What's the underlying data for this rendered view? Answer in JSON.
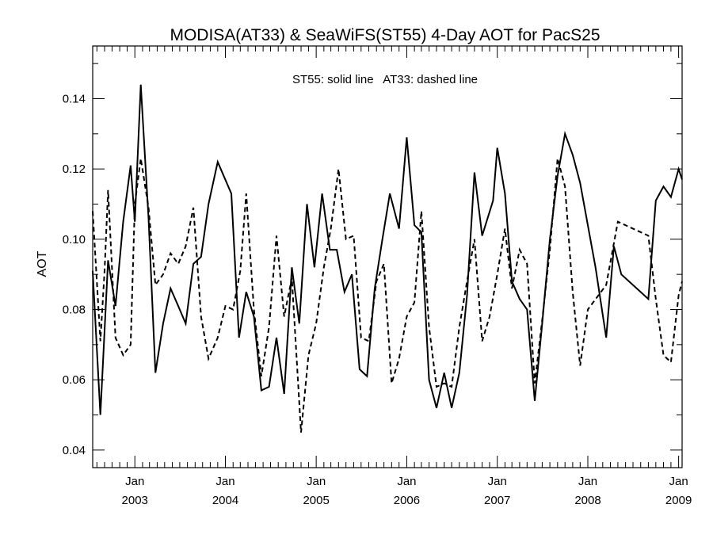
{
  "chart_data": {
    "type": "line",
    "title": "MODISA(AT33) & SeaWiFS(ST55) 4-Day AOT for PacS25",
    "annotation": "ST55: solid line   AT33: dashed line",
    "xlabel": "",
    "ylabel": "AOT",
    "xlim": [
      "2002-07-15",
      "2009-01-15"
    ],
    "ylim": [
      0.035,
      0.155
    ],
    "y_ticks": [
      "0.04",
      "0.06",
      "0.08",
      "0.10",
      "0.12",
      "0.14"
    ],
    "x_ticks": [
      {
        "date": "2003-01-01",
        "month": "Jan",
        "year": "2003"
      },
      {
        "date": "2004-01-01",
        "month": "Jan",
        "year": "2004"
      },
      {
        "date": "2005-01-01",
        "month": "Jan",
        "year": "2005"
      },
      {
        "date": "2006-01-01",
        "month": "Jan",
        "year": "2006"
      },
      {
        "date": "2007-01-01",
        "month": "Jan",
        "year": "2007"
      },
      {
        "date": "2008-01-01",
        "month": "Jan",
        "year": "2008"
      },
      {
        "date": "2009-01-01",
        "month": "Jan",
        "year": "2009"
      }
    ],
    "grid": false,
    "series": [
      {
        "name": "ST55",
        "style": "solid",
        "color": "#000000",
        "points": [
          [
            "2002-07-15",
            0.091
          ],
          [
            "2002-08-15",
            0.05
          ],
          [
            "2002-09-15",
            0.094
          ],
          [
            "2002-10-15",
            0.081
          ],
          [
            "2002-11-15",
            0.105
          ],
          [
            "2002-12-15",
            0.121
          ],
          [
            "2003-01-01",
            0.105
          ],
          [
            "2003-01-25",
            0.144
          ],
          [
            "2003-02-25",
            0.106
          ],
          [
            "2003-03-25",
            0.062
          ],
          [
            "2003-04-25",
            0.076
          ],
          [
            "2003-05-25",
            0.086
          ],
          [
            "2003-06-25",
            0.081
          ],
          [
            "2003-07-25",
            0.076
          ],
          [
            "2003-08-25",
            0.093
          ],
          [
            "2003-09-25",
            0.095
          ],
          [
            "2003-10-25",
            0.11
          ],
          [
            "2003-12-01",
            0.122
          ],
          [
            "2004-01-25",
            0.113
          ],
          [
            "2004-02-25",
            0.072
          ],
          [
            "2004-03-25",
            0.085
          ],
          [
            "2004-04-25",
            0.078
          ],
          [
            "2004-05-25",
            0.057
          ],
          [
            "2004-06-25",
            0.058
          ],
          [
            "2004-07-25",
            0.072
          ],
          [
            "2004-08-25",
            0.056
          ],
          [
            "2004-09-25",
            0.092
          ],
          [
            "2004-10-25",
            0.076
          ],
          [
            "2004-11-25",
            0.11
          ],
          [
            "2004-12-25",
            0.092
          ],
          [
            "2005-01-25",
            0.113
          ],
          [
            "2005-02-25",
            0.097
          ],
          [
            "2005-03-25",
            0.097
          ],
          [
            "2005-04-25",
            0.085
          ],
          [
            "2005-05-25",
            0.09
          ],
          [
            "2005-06-25",
            0.063
          ],
          [
            "2005-07-25",
            0.061
          ],
          [
            "2005-08-25",
            0.086
          ],
          [
            "2005-09-25",
            0.1
          ],
          [
            "2005-10-25",
            0.113
          ],
          [
            "2005-12-01",
            0.103
          ],
          [
            "2006-01-01",
            0.129
          ],
          [
            "2006-02-01",
            0.104
          ],
          [
            "2006-03-01",
            0.102
          ],
          [
            "2006-04-01",
            0.06
          ],
          [
            "2006-05-01",
            0.052
          ],
          [
            "2006-06-01",
            0.062
          ],
          [
            "2006-07-01",
            0.052
          ],
          [
            "2006-08-01",
            0.062
          ],
          [
            "2006-09-01",
            0.084
          ],
          [
            "2006-10-01",
            0.119
          ],
          [
            "2006-11-01",
            0.101
          ],
          [
            "2006-12-15",
            0.111
          ],
          [
            "2007-01-01",
            0.126
          ],
          [
            "2007-02-01",
            0.113
          ],
          [
            "2007-03-01",
            0.088
          ],
          [
            "2007-04-01",
            0.083
          ],
          [
            "2007-05-01",
            0.08
          ],
          [
            "2007-06-01",
            0.054
          ],
          [
            "2007-07-01",
            0.076
          ],
          [
            "2007-08-01",
            0.1
          ],
          [
            "2007-09-01",
            0.118
          ],
          [
            "2007-10-01",
            0.13
          ],
          [
            "2007-11-01",
            0.124
          ],
          [
            "2007-12-01",
            0.116
          ],
          [
            "2008-02-01",
            0.092
          ],
          [
            "2008-03-15",
            0.072
          ],
          [
            "2008-04-15",
            0.098
          ],
          [
            "2008-05-15",
            0.09
          ],
          [
            "2008-09-01",
            0.083
          ],
          [
            "2008-10-01",
            0.111
          ],
          [
            "2008-11-01",
            0.115
          ],
          [
            "2008-12-01",
            0.112
          ],
          [
            "2009-01-01",
            0.12
          ],
          [
            "2009-01-15",
            0.117
          ]
        ]
      },
      {
        "name": "AT33",
        "style": "dashed",
        "color": "#000000",
        "points": [
          [
            "2002-07-15",
            0.108
          ],
          [
            "2002-08-15",
            0.071
          ],
          [
            "2002-09-01",
            0.091
          ],
          [
            "2002-09-15",
            0.114
          ],
          [
            "2002-10-15",
            0.072
          ],
          [
            "2002-11-15",
            0.067
          ],
          [
            "2002-12-15",
            0.07
          ],
          [
            "2003-01-01",
            0.11
          ],
          [
            "2003-01-25",
            0.123
          ],
          [
            "2003-02-25",
            0.109
          ],
          [
            "2003-03-25",
            0.087
          ],
          [
            "2003-04-25",
            0.09
          ],
          [
            "2003-05-25",
            0.096
          ],
          [
            "2003-06-25",
            0.093
          ],
          [
            "2003-07-25",
            0.098
          ],
          [
            "2003-08-25",
            0.109
          ],
          [
            "2003-09-25",
            0.078
          ],
          [
            "2003-10-25",
            0.066
          ],
          [
            "2003-12-01",
            0.072
          ],
          [
            "2004-01-01",
            0.081
          ],
          [
            "2004-02-01",
            0.08
          ],
          [
            "2004-03-01",
            0.091
          ],
          [
            "2004-03-25",
            0.113
          ],
          [
            "2004-04-25",
            0.08
          ],
          [
            "2004-05-25",
            0.061
          ],
          [
            "2004-06-25",
            0.075
          ],
          [
            "2004-07-25",
            0.101
          ],
          [
            "2004-08-25",
            0.078
          ],
          [
            "2004-09-25",
            0.089
          ],
          [
            "2004-11-01",
            0.045
          ],
          [
            "2004-12-01",
            0.067
          ],
          [
            "2005-01-01",
            0.076
          ],
          [
            "2005-02-01",
            0.092
          ],
          [
            "2005-03-01",
            0.103
          ],
          [
            "2005-04-01",
            0.12
          ],
          [
            "2005-05-01",
            0.1
          ],
          [
            "2005-06-01",
            0.101
          ],
          [
            "2005-07-01",
            0.072
          ],
          [
            "2005-08-01",
            0.071
          ],
          [
            "2005-09-01",
            0.088
          ],
          [
            "2005-10-01",
            0.093
          ],
          [
            "2005-11-01",
            0.059
          ],
          [
            "2005-12-01",
            0.066
          ],
          [
            "2006-01-01",
            0.078
          ],
          [
            "2006-02-01",
            0.082
          ],
          [
            "2006-03-01",
            0.108
          ],
          [
            "2006-04-01",
            0.075
          ],
          [
            "2006-05-01",
            0.058
          ],
          [
            "2006-06-01",
            0.059
          ],
          [
            "2006-07-01",
            0.058
          ],
          [
            "2006-08-01",
            0.075
          ],
          [
            "2006-09-01",
            0.088
          ],
          [
            "2006-10-01",
            0.1
          ],
          [
            "2006-11-01",
            0.071
          ],
          [
            "2006-12-01",
            0.078
          ],
          [
            "2007-01-01",
            0.09
          ],
          [
            "2007-02-01",
            0.103
          ],
          [
            "2007-03-01",
            0.086
          ],
          [
            "2007-04-01",
            0.097
          ],
          [
            "2007-05-01",
            0.093
          ],
          [
            "2007-06-01",
            0.059
          ],
          [
            "2007-07-01",
            0.077
          ],
          [
            "2007-08-01",
            0.097
          ],
          [
            "2007-09-01",
            0.123
          ],
          [
            "2007-10-01",
            0.115
          ],
          [
            "2007-11-01",
            0.085
          ],
          [
            "2007-12-01",
            0.064
          ],
          [
            "2008-01-01",
            0.08
          ],
          [
            "2008-03-15",
            0.087
          ],
          [
            "2008-05-01",
            0.105
          ],
          [
            "2008-09-01",
            0.101
          ],
          [
            "2008-10-01",
            0.083
          ],
          [
            "2008-11-01",
            0.067
          ],
          [
            "2008-12-01",
            0.065
          ],
          [
            "2009-01-01",
            0.084
          ],
          [
            "2009-01-15",
            0.088
          ]
        ]
      }
    ]
  }
}
